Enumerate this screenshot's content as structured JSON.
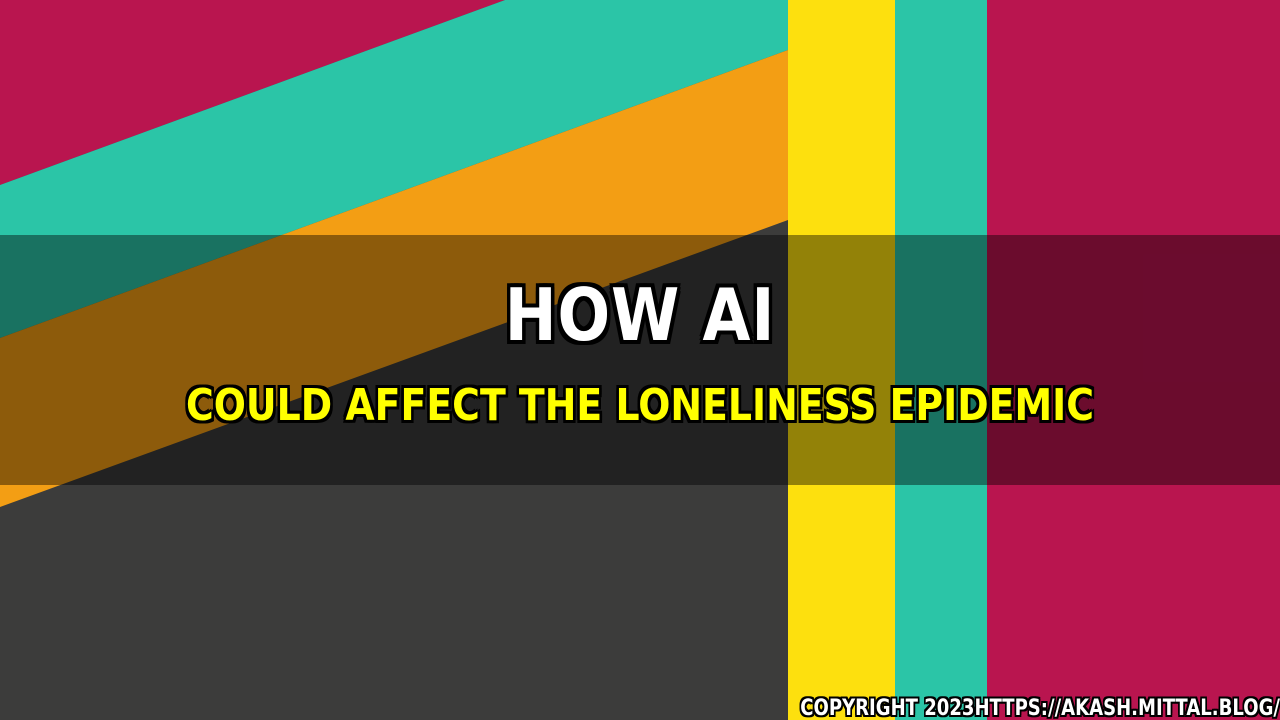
{
  "banner": {
    "title": "HOW AI",
    "subtitle": "COULD AFFECT THE LONELINESS EPIDEMIC",
    "copyright": "COPYRIGHT 2023HTTPS://AKASH.MITTAL.BLOG/"
  },
  "colors": {
    "crimson": "#b9154f",
    "teal": "#2bc5a7",
    "orange": "#f39e14",
    "yellow": "#fde00e",
    "charcoal": "#3c3c3b",
    "overlay": "rgba(0,0,0,0.42)",
    "title_text": "#ffffff",
    "subtitle_text": "#ffff00"
  }
}
